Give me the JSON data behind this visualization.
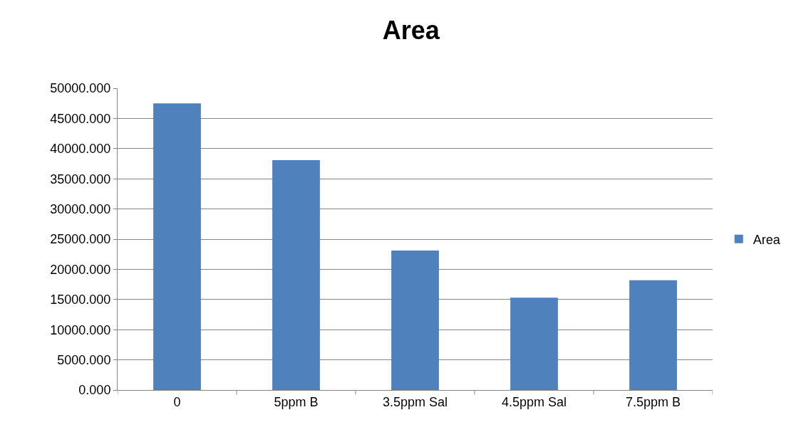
{
  "chart_data": {
    "type": "bar",
    "title": "Area",
    "categories": [
      "0",
      "5ppm B",
      "3.5ppm Sal",
      "4.5ppm Sal",
      "7.5ppm B"
    ],
    "series": [
      {
        "name": "Area",
        "color": "#4f81bd",
        "values": [
          47500,
          38100,
          23100,
          15300,
          18200
        ]
      }
    ],
    "ylim": [
      0,
      50000
    ],
    "yticks": [
      {
        "value": 0,
        "label": "0.000"
      },
      {
        "value": 5000,
        "label": "5000.000"
      },
      {
        "value": 10000,
        "label": "10000.000"
      },
      {
        "value": 15000,
        "label": "15000.000"
      },
      {
        "value": 20000,
        "label": "20000.000"
      },
      {
        "value": 25000,
        "label": "25000.000"
      },
      {
        "value": 30000,
        "label": "30000.000"
      },
      {
        "value": 35000,
        "label": "35000.000"
      },
      {
        "value": 40000,
        "label": "40000.000"
      },
      {
        "value": 45000,
        "label": "45000.000"
      },
      {
        "value": 50000,
        "label": "50000.000"
      }
    ],
    "grid": "y",
    "legend": "right"
  }
}
